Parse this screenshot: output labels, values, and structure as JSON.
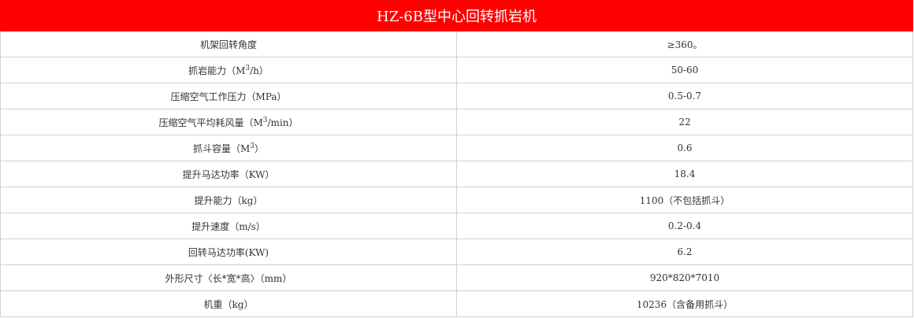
{
  "title": "HZ-6B型中心回转抓岩机",
  "header_color": "#fe0000",
  "rows": [
    {
      "label": {
        "pre": "机架回转角度",
        "sup": "",
        "post": ""
      },
      "value": "≥360。"
    },
    {
      "label": {
        "pre": "抓岩能力（M",
        "sup": "3",
        "post": "/h）"
      },
      "value": "50-60"
    },
    {
      "label": {
        "pre": "压缩空气工作压力（MPa）",
        "sup": "",
        "post": ""
      },
      "value": "0.5-0.7"
    },
    {
      "label": {
        "pre": "压缩空气平均耗风量（M",
        "sup": "3",
        "post": "/min）"
      },
      "value": "22"
    },
    {
      "label": {
        "pre": "抓斗容量（M",
        "sup": "3",
        "post": "）"
      },
      "value": "0.6"
    },
    {
      "label": {
        "pre": "提升马达功率（KW）",
        "sup": "",
        "post": ""
      },
      "value": "18.4"
    },
    {
      "label": {
        "pre": "提升能力（kg）",
        "sup": "",
        "post": ""
      },
      "value": "1100（不包括抓斗）"
    },
    {
      "label": {
        "pre": "提升速度（m/s）",
        "sup": "",
        "post": ""
      },
      "value": "0.2-0.4"
    },
    {
      "label": {
        "pre": "回转马达功率(KW)",
        "sup": "",
        "post": ""
      },
      "value": "6.2"
    },
    {
      "label": {
        "pre": "外形尺寸〈长*宽*高〉（mm）",
        "sup": "",
        "post": ""
      },
      "value": "920*820*7010"
    },
    {
      "label": {
        "pre": "机重（kg）",
        "sup": "",
        "post": ""
      },
      "value": "10236（含备用抓斗）"
    }
  ]
}
